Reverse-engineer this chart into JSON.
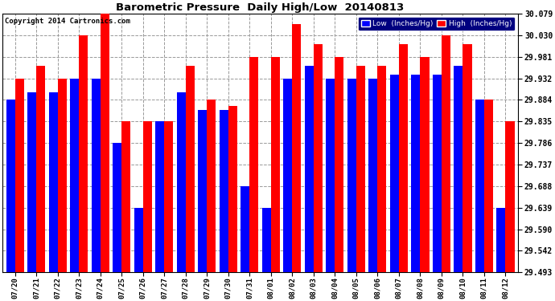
{
  "title": "Barometric Pressure  Daily High/Low  20140813",
  "copyright": "Copyright 2014 Cartronics.com",
  "ylabel_right_ticks": [
    29.493,
    29.542,
    29.59,
    29.639,
    29.688,
    29.737,
    29.786,
    29.835,
    29.884,
    29.932,
    29.981,
    30.03,
    30.079
  ],
  "dates": [
    "07/20",
    "07/21",
    "07/22",
    "07/23",
    "07/24",
    "07/25",
    "07/26",
    "07/27",
    "07/28",
    "07/29",
    "07/30",
    "07/31",
    "08/01",
    "08/02",
    "08/03",
    "08/04",
    "08/05",
    "08/06",
    "08/07",
    "08/08",
    "08/09",
    "08/10",
    "08/11",
    "08/12"
  ],
  "low": [
    29.884,
    29.9,
    29.9,
    29.932,
    29.932,
    29.786,
    29.639,
    29.835,
    29.9,
    29.86,
    29.86,
    29.688,
    29.639,
    29.932,
    29.96,
    29.932,
    29.932,
    29.932,
    29.94,
    29.94,
    29.94,
    29.96,
    29.884,
    29.639
  ],
  "high": [
    29.932,
    29.96,
    29.932,
    30.03,
    30.079,
    29.835,
    29.835,
    29.835,
    29.96,
    29.884,
    29.87,
    29.981,
    29.981,
    30.055,
    30.01,
    29.981,
    29.96,
    29.96,
    30.01,
    29.981,
    30.03,
    30.01,
    29.884,
    29.835
  ],
  "bar_width": 0.42,
  "bg_color": "#ffffff",
  "low_color": "#0000ff",
  "high_color": "#ff0000",
  "grid_color": "#999999",
  "ymin": 29.493,
  "ymax": 30.079,
  "figwidth": 6.9,
  "figheight": 3.75,
  "dpi": 100
}
